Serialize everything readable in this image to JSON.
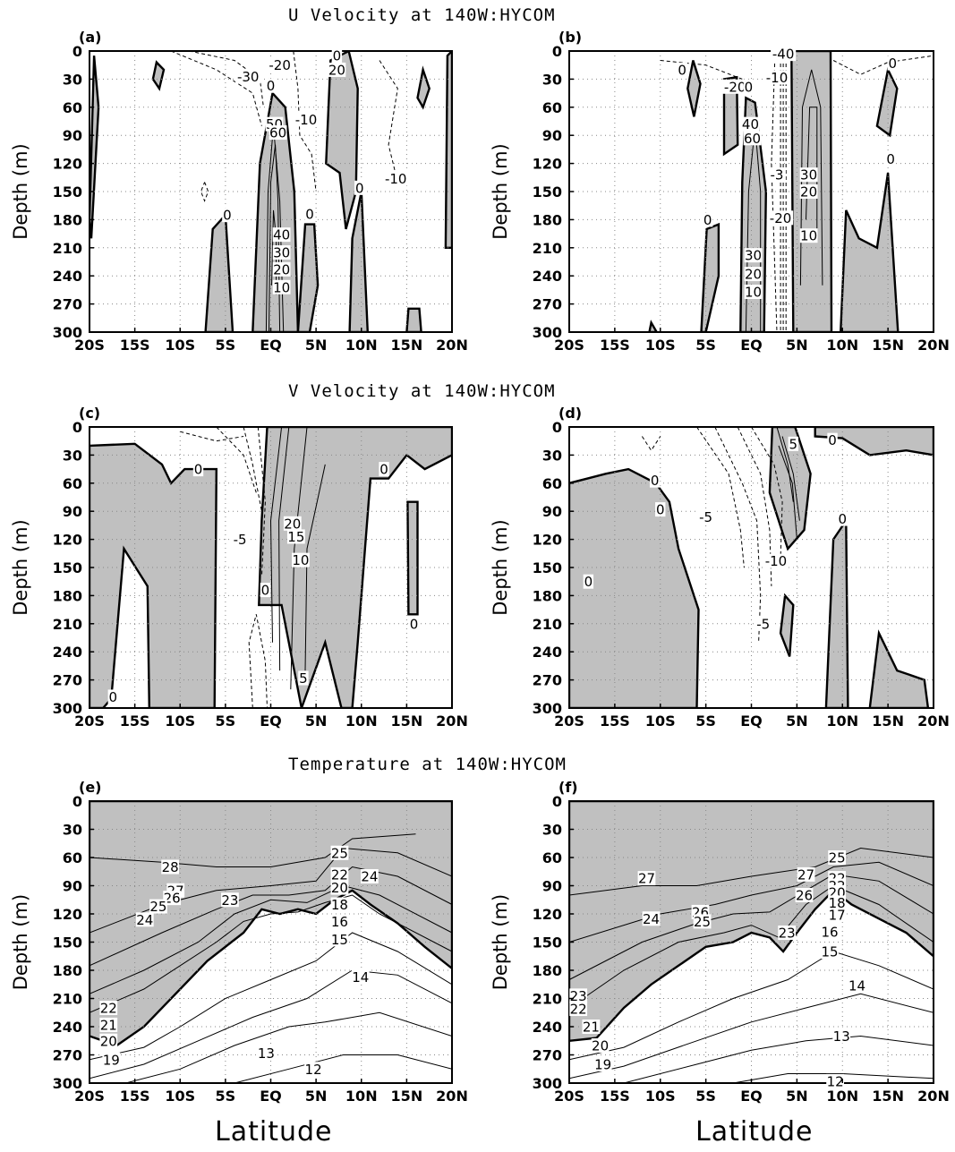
{
  "figure": {
    "row_titles": [
      "U Velocity at 140W:HYCOM",
      "V Velocity at 140W:HYCOM",
      "Temperature at 140W:HYCOM"
    ],
    "xlabel": "Latitude"
  },
  "colors": {
    "shade": "#c0c0c0",
    "line": "#000000",
    "grid": "#888888"
  },
  "chart_data": [
    {
      "type": "contour",
      "panel_label": "(a)",
      "row_title": "U Velocity at 140W:HYCOM",
      "ylabel": "Depth (m)",
      "xlabel": "",
      "xlim": [
        -20,
        20
      ],
      "ylim": [
        300,
        0
      ],
      "xticks": [
        "20S",
        "15S",
        "10S",
        "5S",
        "EQ",
        "5N",
        "10N",
        "15N",
        "20N"
      ],
      "yticks": [
        "0",
        "30",
        "60",
        "90",
        "120",
        "150",
        "180",
        "210",
        "240",
        "270",
        "300"
      ],
      "grid": true,
      "shading": "values > 0 shaded gray",
      "contour_labels": [
        {
          "text": "-20",
          "lat": 1.0,
          "depth": 15
        },
        {
          "text": "-30",
          "lat": -2.5,
          "depth": 27
        },
        {
          "text": "0",
          "lat": 0.0,
          "depth": 37
        },
        {
          "text": "0",
          "lat": 7.3,
          "depth": 5
        },
        {
          "text": "20",
          "lat": 7.3,
          "depth": 20
        },
        {
          "text": "-10",
          "lat": 3.9,
          "depth": 73
        },
        {
          "text": "50",
          "lat": 0.4,
          "depth": 78
        },
        {
          "text": "60",
          "lat": 0.8,
          "depth": 87
        },
        {
          "text": "-10",
          "lat": 13.8,
          "depth": 136
        },
        {
          "text": "0",
          "lat": 9.8,
          "depth": 146
        },
        {
          "text": "0",
          "lat": -4.8,
          "depth": 175
        },
        {
          "text": "0",
          "lat": 4.3,
          "depth": 174
        },
        {
          "text": "40",
          "lat": 1.2,
          "depth": 196
        },
        {
          "text": "30",
          "lat": 1.2,
          "depth": 215
        },
        {
          "text": "20",
          "lat": 1.2,
          "depth": 233
        },
        {
          "text": "10",
          "lat": 1.2,
          "depth": 252
        }
      ]
    },
    {
      "type": "contour",
      "panel_label": "(b)",
      "row_title": "U Velocity at 140W:HYCOM",
      "ylabel": "Depth (m)",
      "xlabel": "",
      "xlim": [
        -20,
        20
      ],
      "ylim": [
        300,
        0
      ],
      "xticks": [
        "20S",
        "15S",
        "10S",
        "5S",
        "EQ",
        "5N",
        "10N",
        "15N",
        "20N"
      ],
      "yticks": [
        "0",
        "30",
        "60",
        "90",
        "120",
        "150",
        "180",
        "210",
        "240",
        "270",
        "300"
      ],
      "grid": true,
      "shading": "values > 0 shaded gray",
      "contour_labels": [
        {
          "text": "-40",
          "lat": 3.5,
          "depth": 3
        },
        {
          "text": "-10",
          "lat": 2.8,
          "depth": 28
        },
        {
          "text": "-20",
          "lat": -1.8,
          "depth": 38
        },
        {
          "text": "0",
          "lat": -0.3,
          "depth": 38
        },
        {
          "text": "0",
          "lat": -7.6,
          "depth": 20
        },
        {
          "text": "0",
          "lat": 15.5,
          "depth": 13
        },
        {
          "text": "40",
          "lat": -0.1,
          "depth": 78
        },
        {
          "text": "60",
          "lat": 0.1,
          "depth": 93
        },
        {
          "text": "-3",
          "lat": 2.8,
          "depth": 132
        },
        {
          "text": "30",
          "lat": 6.3,
          "depth": 132
        },
        {
          "text": "20",
          "lat": 6.3,
          "depth": 150
        },
        {
          "text": "0",
          "lat": 15.3,
          "depth": 115
        },
        {
          "text": "-20",
          "lat": 3.2,
          "depth": 178
        },
        {
          "text": "0",
          "lat": -4.8,
          "depth": 180
        },
        {
          "text": "10",
          "lat": 6.3,
          "depth": 197
        },
        {
          "text": "30",
          "lat": 0.2,
          "depth": 218
        },
        {
          "text": "20",
          "lat": 0.2,
          "depth": 238
        },
        {
          "text": "10",
          "lat": 0.2,
          "depth": 257
        }
      ]
    },
    {
      "type": "contour",
      "panel_label": "(c)",
      "row_title": "V Velocity at 140W:HYCOM",
      "ylabel": "Depth (m)",
      "xlabel": "",
      "xlim": [
        -20,
        20
      ],
      "ylim": [
        300,
        0
      ],
      "xticks": [
        "20S",
        "15S",
        "10S",
        "5S",
        "EQ",
        "5N",
        "10N",
        "15N",
        "20N"
      ],
      "yticks": [
        "0",
        "30",
        "60",
        "90",
        "120",
        "150",
        "180",
        "210",
        "240",
        "270",
        "300"
      ],
      "grid": true,
      "shading": "values > 0 shaded gray",
      "contour_labels": [
        {
          "text": "0",
          "lat": -8.0,
          "depth": 45
        },
        {
          "text": "0",
          "lat": 12.5,
          "depth": 45
        },
        {
          "text": "20",
          "lat": 2.4,
          "depth": 103
        },
        {
          "text": "15",
          "lat": 2.8,
          "depth": 117
        },
        {
          "text": "-5",
          "lat": -3.4,
          "depth": 120
        },
        {
          "text": "10",
          "lat": 3.3,
          "depth": 142
        },
        {
          "text": "0",
          "lat": -0.6,
          "depth": 174
        },
        {
          "text": "0",
          "lat": 15.8,
          "depth": 210
        },
        {
          "text": "5",
          "lat": 3.6,
          "depth": 268
        },
        {
          "text": "0",
          "lat": -17.4,
          "depth": 288
        }
      ]
    },
    {
      "type": "contour",
      "panel_label": "(d)",
      "row_title": "V Velocity at 140W:HYCOM",
      "ylabel": "Depth (m)",
      "xlabel": "",
      "xlim": [
        -20,
        20
      ],
      "ylim": [
        300,
        0
      ],
      "xticks": [
        "20S",
        "15S",
        "10S",
        "5S",
        "EQ",
        "5N",
        "10N",
        "15N",
        "20N"
      ],
      "yticks": [
        "0",
        "30",
        "60",
        "90",
        "120",
        "150",
        "180",
        "210",
        "240",
        "270",
        "300"
      ],
      "grid": true,
      "shading": "values > 0 shaded gray",
      "contour_labels": [
        {
          "text": "5",
          "lat": 4.6,
          "depth": 18
        },
        {
          "text": "0",
          "lat": 8.9,
          "depth": 14
        },
        {
          "text": "0",
          "lat": -10.6,
          "depth": 57
        },
        {
          "text": "0",
          "lat": -10.0,
          "depth": 88
        },
        {
          "text": "-5",
          "lat": -5.0,
          "depth": 96
        },
        {
          "text": "-10",
          "lat": 2.7,
          "depth": 143
        },
        {
          "text": "0",
          "lat": -17.9,
          "depth": 165
        },
        {
          "text": "0",
          "lat": 10.0,
          "depth": 98
        },
        {
          "text": "-5",
          "lat": 1.3,
          "depth": 210
        }
      ]
    },
    {
      "type": "contour",
      "panel_label": "(e)",
      "row_title": "Temperature at 140W:HYCOM",
      "ylabel": "Depth (m)",
      "xlabel": "Latitude",
      "xlim": [
        -20,
        20
      ],
      "ylim": [
        300,
        0
      ],
      "xticks": [
        "20S",
        "15S",
        "10S",
        "5S",
        "EQ",
        "5N",
        "10N",
        "15N",
        "20N"
      ],
      "yticks": [
        "0",
        "30",
        "60",
        "90",
        "120",
        "150",
        "180",
        "210",
        "240",
        "270",
        "300"
      ],
      "grid": true,
      "shading": "temperature >= 20 shaded gray (20 contour drawn thick)",
      "contour_labels": [
        {
          "text": "28",
          "lat": -11.1,
          "depth": 70
        },
        {
          "text": "25",
          "lat": 7.6,
          "depth": 55
        },
        {
          "text": "24",
          "lat": 10.9,
          "depth": 80
        },
        {
          "text": "22",
          "lat": 7.6,
          "depth": 78
        },
        {
          "text": "27",
          "lat": -10.5,
          "depth": 95
        },
        {
          "text": "26",
          "lat": -10.9,
          "depth": 103
        },
        {
          "text": "23",
          "lat": -4.5,
          "depth": 105
        },
        {
          "text": "20",
          "lat": 7.6,
          "depth": 92
        },
        {
          "text": "25",
          "lat": -12.4,
          "depth": 112
        },
        {
          "text": "18",
          "lat": 7.6,
          "depth": 110
        },
        {
          "text": "24",
          "lat": -13.9,
          "depth": 126
        },
        {
          "text": "16",
          "lat": 7.6,
          "depth": 128
        },
        {
          "text": "15",
          "lat": 7.6,
          "depth": 147
        },
        {
          "text": "14",
          "lat": 9.9,
          "depth": 187
        },
        {
          "text": "22",
          "lat": -17.9,
          "depth": 220
        },
        {
          "text": "21",
          "lat": -17.9,
          "depth": 238
        },
        {
          "text": "20",
          "lat": -17.9,
          "depth": 255
        },
        {
          "text": "19",
          "lat": -17.6,
          "depth": 275
        },
        {
          "text": "13",
          "lat": -0.5,
          "depth": 268
        },
        {
          "text": "12",
          "lat": 4.7,
          "depth": 285
        }
      ]
    },
    {
      "type": "contour",
      "panel_label": "(f)",
      "row_title": "Temperature at 140W:HYCOM",
      "ylabel": "Depth (m)",
      "xlabel": "Latitude",
      "xlim": [
        -20,
        20
      ],
      "ylim": [
        300,
        0
      ],
      "xticks": [
        "20S",
        "15S",
        "10S",
        "5S",
        "EQ",
        "5N",
        "10N",
        "15N",
        "20N"
      ],
      "yticks": [
        "0",
        "30",
        "60",
        "90",
        "120",
        "150",
        "180",
        "210",
        "240",
        "270",
        "300"
      ],
      "grid": true,
      "shading": "temperature >= 20 shaded gray (20 contour drawn thick)",
      "contour_labels": [
        {
          "text": "25",
          "lat": 9.4,
          "depth": 60
        },
        {
          "text": "27",
          "lat": -11.5,
          "depth": 82
        },
        {
          "text": "27",
          "lat": 6.0,
          "depth": 78
        },
        {
          "text": "22",
          "lat": 9.4,
          "depth": 82
        },
        {
          "text": "22",
          "lat": 9.4,
          "depth": 90
        },
        {
          "text": "26",
          "lat": 5.8,
          "depth": 100
        },
        {
          "text": "20",
          "lat": 9.4,
          "depth": 97
        },
        {
          "text": "26",
          "lat": -5.6,
          "depth": 118
        },
        {
          "text": "25",
          "lat": -5.4,
          "depth": 128
        },
        {
          "text": "24",
          "lat": -11.0,
          "depth": 125
        },
        {
          "text": "18",
          "lat": 9.4,
          "depth": 108
        },
        {
          "text": "17",
          "lat": 9.4,
          "depth": 121
        },
        {
          "text": "23",
          "lat": 3.9,
          "depth": 140
        },
        {
          "text": "16",
          "lat": 8.6,
          "depth": 139
        },
        {
          "text": "15",
          "lat": 8.6,
          "depth": 160
        },
        {
          "text": "14",
          "lat": 11.6,
          "depth": 196
        },
        {
          "text": "23",
          "lat": -19.0,
          "depth": 207
        },
        {
          "text": "22",
          "lat": -19.0,
          "depth": 221
        },
        {
          "text": "21",
          "lat": -17.6,
          "depth": 240
        },
        {
          "text": "20",
          "lat": -16.6,
          "depth": 260
        },
        {
          "text": "19",
          "lat": -16.3,
          "depth": 280
        },
        {
          "text": "13",
          "lat": 9.9,
          "depth": 250
        },
        {
          "text": "12",
          "lat": 9.2,
          "depth": 298
        }
      ]
    }
  ]
}
